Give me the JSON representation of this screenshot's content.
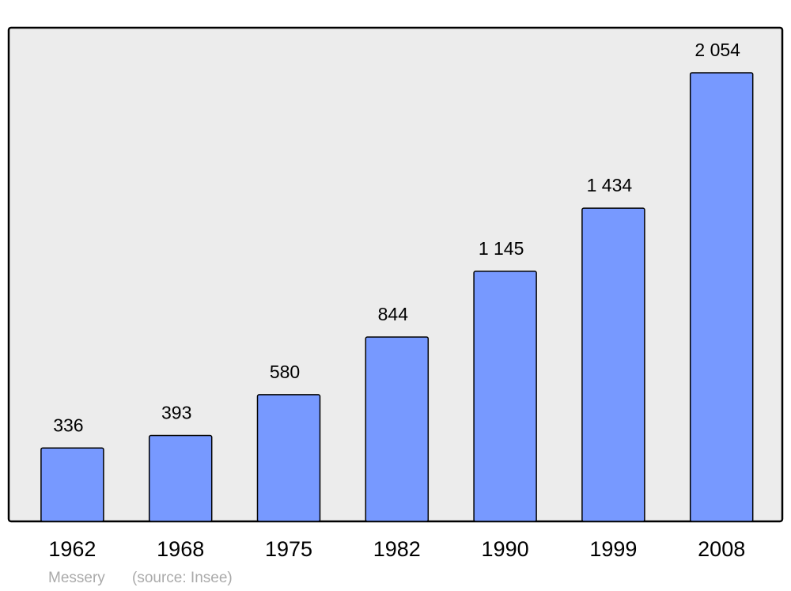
{
  "chart_data": {
    "type": "bar",
    "title": "Messery",
    "source": "(source: Insee)",
    "categories": [
      "1962",
      "1968",
      "1975",
      "1982",
      "1990",
      "1999",
      "2008"
    ],
    "values": [
      336,
      393,
      580,
      844,
      1145,
      1434,
      2054
    ],
    "value_labels": [
      "336",
      "393",
      "580",
      "844",
      "1 145",
      "1 434",
      "2 054"
    ],
    "color": "#7799ff"
  }
}
